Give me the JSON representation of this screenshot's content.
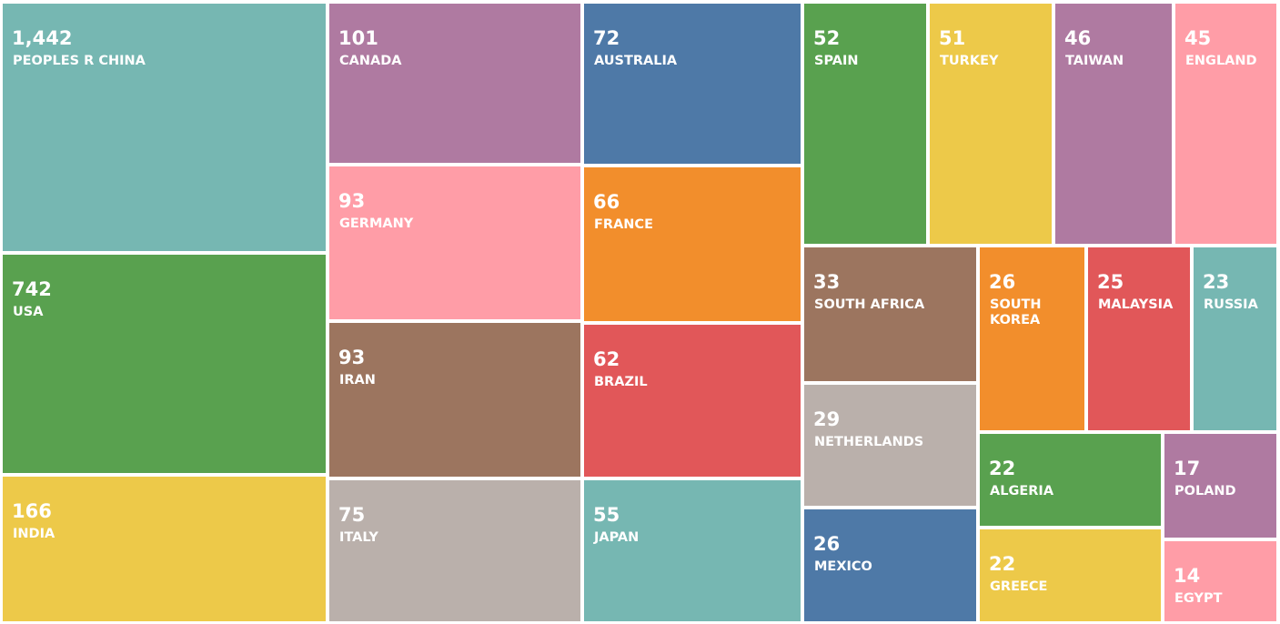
{
  "chart_data": {
    "type": "treemap",
    "items": [
      {
        "label": "PEOPLES R CHINA",
        "value": 1442,
        "display": "1,442",
        "color": "#76b7b2"
      },
      {
        "label": "USA",
        "value": 742,
        "display": "742",
        "color": "#59a14f"
      },
      {
        "label": "INDIA",
        "value": 166,
        "display": "166",
        "color": "#edc949"
      },
      {
        "label": "CANADA",
        "value": 101,
        "display": "101",
        "color": "#af7aa1"
      },
      {
        "label": "GERMANY",
        "value": 93,
        "display": "93",
        "color": "#ff9da7"
      },
      {
        "label": "IRAN",
        "value": 93,
        "display": "93",
        "color": "#9c755f"
      },
      {
        "label": "ITALY",
        "value": 75,
        "display": "75",
        "color": "#bab0ab"
      },
      {
        "label": "AUSTRALIA",
        "value": 72,
        "display": "72",
        "color": "#4e79a7"
      },
      {
        "label": "FRANCE",
        "value": 66,
        "display": "66",
        "color": "#f28e2c"
      },
      {
        "label": "BRAZIL",
        "value": 62,
        "display": "62",
        "color": "#e15759"
      },
      {
        "label": "JAPAN",
        "value": 55,
        "display": "55",
        "color": "#76b7b2"
      },
      {
        "label": "SPAIN",
        "value": 52,
        "display": "52",
        "color": "#59a14f"
      },
      {
        "label": "TURKEY",
        "value": 51,
        "display": "51",
        "color": "#edc949"
      },
      {
        "label": "TAIWAN",
        "value": 46,
        "display": "46",
        "color": "#af7aa1"
      },
      {
        "label": "ENGLAND",
        "value": 45,
        "display": "45",
        "color": "#ff9da7"
      },
      {
        "label": "SOUTH AFRICA",
        "value": 33,
        "display": "33",
        "color": "#9c755f"
      },
      {
        "label": "SOUTH\nKOREA",
        "value": 26,
        "display": "26",
        "color": "#f28e2c"
      },
      {
        "label": "MALAYSIA",
        "value": 25,
        "display": "25",
        "color": "#e15759"
      },
      {
        "label": "RUSSIA",
        "value": 23,
        "display": "23",
        "color": "#76b7b2"
      },
      {
        "label": "NETHERLANDS",
        "value": 29,
        "display": "29",
        "color": "#bab0ab"
      },
      {
        "label": "MEXICO",
        "value": 26,
        "display": "26",
        "color": "#4e79a7"
      },
      {
        "label": "ALGERIA",
        "value": 22,
        "display": "22",
        "color": "#59a14f"
      },
      {
        "label": "GREECE",
        "value": 22,
        "display": "22",
        "color": "#edc949"
      },
      {
        "label": "POLAND",
        "value": 17,
        "display": "17",
        "color": "#af7aa1"
      },
      {
        "label": "EGYPT",
        "value": 14,
        "display": "14",
        "color": "#ff9da7"
      }
    ]
  }
}
